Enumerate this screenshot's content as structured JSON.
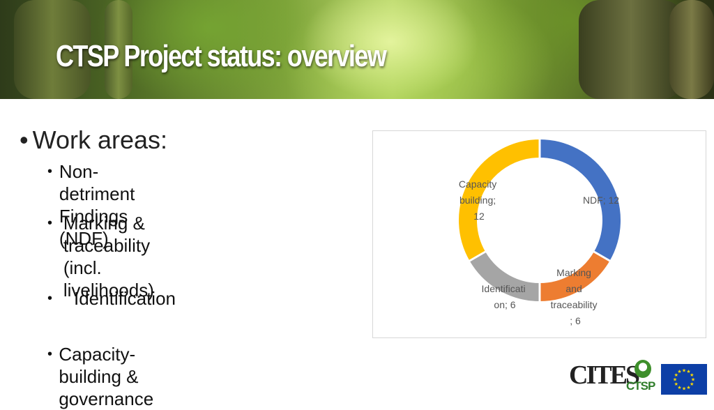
{
  "header": {
    "title": "CTSP Project status: overview"
  },
  "content": {
    "heading": "Work areas:",
    "items": [
      "Non-detriment Findings (NDF)",
      "Marking & traceability\n(incl. livelihoods)",
      "Identification",
      "Capacity-building & governance"
    ]
  },
  "chart_data": {
    "type": "pie",
    "subtype": "doughnut",
    "slices": [
      {
        "name": "NDF",
        "value": 12,
        "color": "#4472C4",
        "label": "NDF; 12"
      },
      {
        "name": "Marking and traceability",
        "value": 6,
        "color": "#ED7D31",
        "label": "Marking and traceability ; 6"
      },
      {
        "name": "Identification",
        "value": 6,
        "color": "#A5A5A5",
        "label": "Identification; 6"
      },
      {
        "name": "Capacity building",
        "value": 12,
        "color": "#FFC000",
        "label": "Capacity building; 12"
      }
    ]
  },
  "chart_labels": {
    "ndf": [
      "NDF; 12"
    ],
    "marking": [
      "Marking",
      "and",
      "traceability",
      "; 6"
    ],
    "identification": [
      "Identificati",
      "on; 6"
    ],
    "capacity": [
      "Capacity",
      "building;",
      "12"
    ]
  },
  "logos": {
    "cites": "CITES",
    "ctsp": "CTSP",
    "eu_flag_color": "#0d3fa6",
    "eu_star_color": "#ffdd00"
  }
}
